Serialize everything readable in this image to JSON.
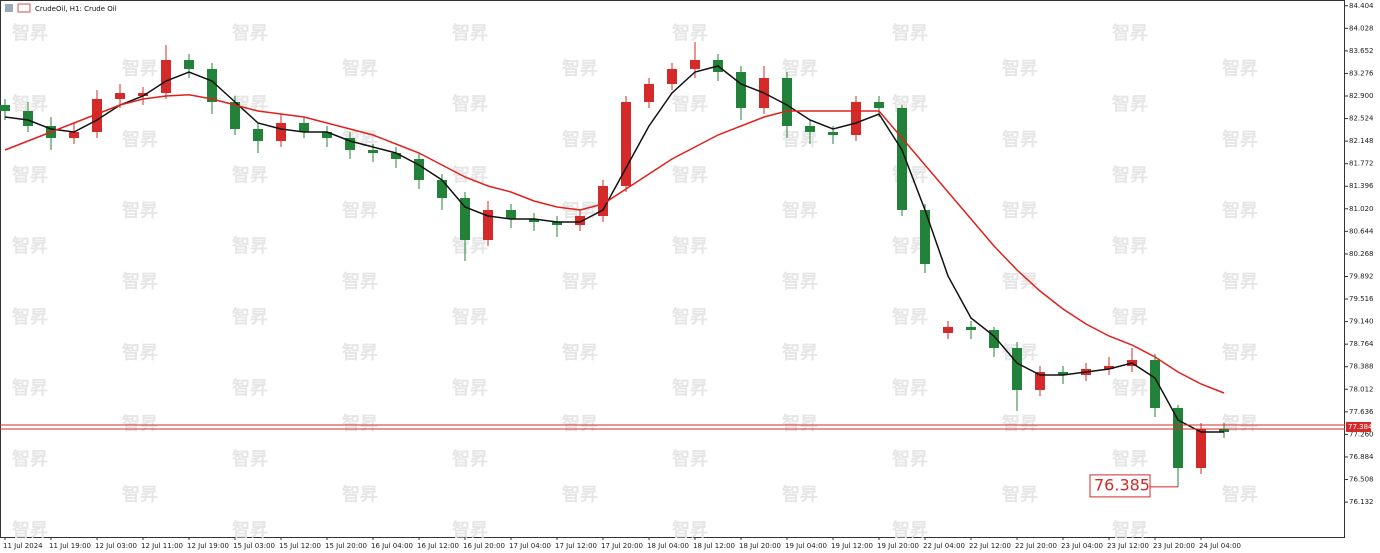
{
  "chart_data": {
    "type": "candlestick",
    "title": "CrudeOil, H1:  Crude Oil",
    "watermark": "智昇",
    "categories": [
      "11 Jul 2024",
      null,
      "11 Jul 19:00",
      null,
      "12 Jul 03:00",
      null,
      "12 Jul 11:00",
      null,
      "12 Jul 19:00",
      null,
      "15 Jul 03:00",
      null,
      "15 Jul 12:00",
      null,
      "15 Jul 20:00",
      null,
      "16 Jul 04:00",
      null,
      "16 Jul 12:00",
      null,
      "16 Jul 20:00",
      null,
      "17 Jul 04:00",
      null,
      "17 Jul 12:00",
      null,
      "17 Jul 20:00",
      null,
      "18 Jul 04:00",
      null,
      "18 Jul 12:00",
      null,
      "18 Jul 20:00",
      null,
      "19 Jul 04:00",
      null,
      "19 Jul 12:00",
      null,
      "19 Jul 20:00",
      null,
      "22 Jul 04:00",
      null,
      "22 Jul 12:00",
      null,
      "22 Jul 20:00",
      null,
      "23 Jul 04:00",
      null,
      "23 Jul 12:00",
      null,
      "23 Jul 20:00",
      null,
      "24 Jul 04:00",
      null
    ],
    "open": [
      82.75,
      82.65,
      82.4,
      82.2,
      82.3,
      82.85,
      82.9,
      82.95,
      83.5,
      83.35,
      82.8,
      82.35,
      82.15,
      82.45,
      82.3,
      82.2,
      82.0,
      81.95,
      81.85,
      81.5,
      81.2,
      80.5,
      81.0,
      80.85,
      80.8,
      80.75,
      80.9,
      81.4,
      82.8,
      83.1,
      83.35,
      83.5,
      83.3,
      82.7,
      83.2,
      82.4,
      82.3,
      82.25,
      82.8,
      82.7,
      81.0,
      78.95,
      79.05,
      79.0,
      78.7,
      78.0,
      78.3,
      78.25,
      78.35,
      78.4,
      78.5,
      77.7,
      76.7,
      77.35
    ],
    "high": [
      82.85,
      82.8,
      82.55,
      82.45,
      83.0,
      83.1,
      83.05,
      83.75,
      83.6,
      83.45,
      82.9,
      82.45,
      82.6,
      82.55,
      82.4,
      82.3,
      82.1,
      82.05,
      81.95,
      81.6,
      81.3,
      81.15,
      81.1,
      80.95,
      80.9,
      81.0,
      81.5,
      82.9,
      83.2,
      83.45,
      83.8,
      83.6,
      83.4,
      83.4,
      83.3,
      82.5,
      82.4,
      82.9,
      82.9,
      82.75,
      81.1,
      79.15,
      79.15,
      79.05,
      78.8,
      78.4,
      78.4,
      78.45,
      78.55,
      78.7,
      78.6,
      77.75,
      77.45,
      77.45
    ],
    "low": [
      82.5,
      82.3,
      82.0,
      82.1,
      82.2,
      82.7,
      82.75,
      82.85,
      83.2,
      82.6,
      82.25,
      81.95,
      82.05,
      82.2,
      82.05,
      81.85,
      81.8,
      81.7,
      81.35,
      81.0,
      80.15,
      80.4,
      80.7,
      80.65,
      80.55,
      80.65,
      80.8,
      81.3,
      82.7,
      83.0,
      83.2,
      83.15,
      82.5,
      82.6,
      82.2,
      82.1,
      82.1,
      82.15,
      82.55,
      80.9,
      79.95,
      78.85,
      78.85,
      78.55,
      77.65,
      77.9,
      78.1,
      78.15,
      78.25,
      78.3,
      77.55,
      76.385,
      76.6,
      77.2
    ],
    "close": [
      82.65,
      82.4,
      82.2,
      82.3,
      82.85,
      82.95,
      82.95,
      83.5,
      83.35,
      82.8,
      82.35,
      82.15,
      82.45,
      82.3,
      82.2,
      82.0,
      81.95,
      81.85,
      81.5,
      81.2,
      80.5,
      81.0,
      80.85,
      80.8,
      80.75,
      80.9,
      81.4,
      82.8,
      83.1,
      83.35,
      83.5,
      83.3,
      82.7,
      83.2,
      82.4,
      82.3,
      82.25,
      82.8,
      82.7,
      81.0,
      80.1,
      79.05,
      79.0,
      78.7,
      78.0,
      78.3,
      78.25,
      78.35,
      78.4,
      78.5,
      77.7,
      76.7,
      77.35,
      77.3
    ],
    "up_color": "#d42a2a",
    "down_color": "#23823a",
    "series": [
      {
        "color": "#111111",
        "values": [
          82.55,
          82.5,
          82.35,
          82.3,
          82.5,
          82.75,
          82.9,
          83.15,
          83.3,
          83.15,
          82.8,
          82.45,
          82.35,
          82.3,
          82.3,
          82.15,
          82.05,
          81.95,
          81.75,
          81.5,
          81.05,
          80.9,
          80.85,
          80.85,
          80.8,
          80.8,
          81.0,
          81.7,
          82.4,
          82.95,
          83.3,
          83.4,
          83.1,
          82.95,
          82.75,
          82.5,
          82.35,
          82.45,
          82.6,
          82.0,
          81.0,
          79.9,
          79.2,
          78.9,
          78.45,
          78.25,
          78.25,
          78.3,
          78.35,
          78.45,
          78.2,
          77.5,
          77.3,
          77.3
        ]
      },
      {
        "color": "#e0201c",
        "values": [
          82.0,
          82.15,
          82.3,
          82.45,
          82.6,
          82.75,
          82.85,
          82.9,
          82.92,
          82.85,
          82.75,
          82.65,
          82.6,
          82.55,
          82.45,
          82.35,
          82.25,
          82.1,
          81.95,
          81.75,
          81.55,
          81.4,
          81.3,
          81.15,
          81.05,
          81.0,
          81.1,
          81.35,
          81.6,
          81.85,
          82.05,
          82.25,
          82.4,
          82.55,
          82.65,
          82.65,
          82.65,
          82.65,
          82.65,
          82.2,
          81.75,
          81.3,
          80.85,
          80.4,
          80.0,
          79.65,
          79.35,
          79.1,
          78.9,
          78.75,
          78.55,
          78.3,
          78.1,
          77.95
        ]
      }
    ],
    "ylim": [
      75.55,
      84.5
    ],
    "yticks": [
      84.404,
      84.028,
      83.652,
      83.276,
      {
        "value": 82.9,
        "label": "82.900"
      },
      82.524,
      82.148,
      81.772,
      81.396,
      {
        "value": 81.02,
        "label": "81.020"
      },
      80.644,
      80.268,
      79.892,
      79.516,
      {
        "value": 79.14,
        "label": "79.140"
      },
      78.764,
      78.388,
      78.012,
      77.636,
      {
        "value": 77.26,
        "label": "77.260"
      },
      76.884,
      76.508,
      76.132
    ],
    "price_line": 77.384,
    "min_label": 76.385
  }
}
